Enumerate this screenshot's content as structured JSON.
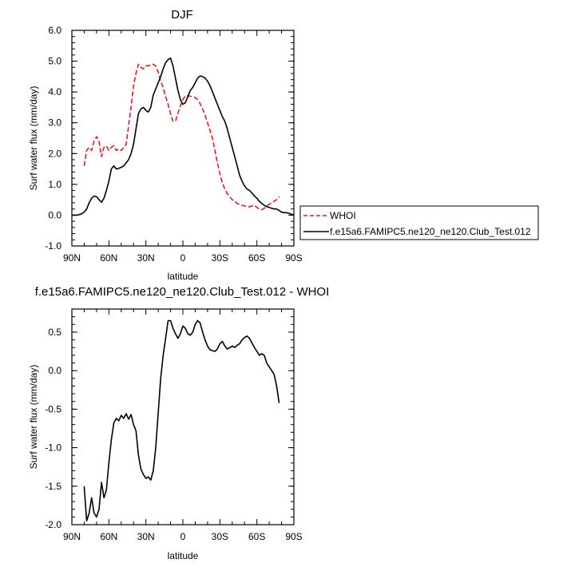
{
  "chart_data": [
    {
      "type": "line",
      "title": "DJF",
      "xlabel": "latitude",
      "ylabel": "Surf water flux (mm/day)",
      "xlim": [
        90,
        -90
      ],
      "ylim": [
        -1.0,
        6.0
      ],
      "x_ticks": [
        90,
        60,
        30,
        0,
        -30,
        -60,
        -90
      ],
      "x_tick_labels": [
        "90N",
        "60N",
        "30N",
        "0",
        "30S",
        "60S",
        "90S"
      ],
      "y_ticks": [
        -1.0,
        0.0,
        1.0,
        2.0,
        3.0,
        4.0,
        5.0,
        6.0
      ],
      "y_tick_labels": [
        "-1.0",
        "0.0",
        "1.0",
        "2.0",
        "3.0",
        "4.0",
        "5.0",
        "6.0"
      ],
      "grid": false,
      "legend": "outside-right",
      "series": [
        {
          "name": "WHOI",
          "color": "#e8191c",
          "dash": "dashed",
          "x": [
            80,
            78,
            76,
            74,
            72,
            70,
            68,
            66,
            64,
            62,
            60,
            58,
            56,
            54,
            52,
            50,
            48,
            46,
            44,
            42,
            40,
            38,
            36,
            34,
            32,
            30,
            28,
            26,
            24,
            22,
            20,
            18,
            16,
            14,
            12,
            10,
            8,
            6,
            4,
            2,
            0,
            -2,
            -4,
            -6,
            -8,
            -10,
            -12,
            -14,
            -16,
            -18,
            -20,
            -22,
            -24,
            -26,
            -28,
            -30,
            -32,
            -34,
            -36,
            -38,
            -40,
            -42,
            -44,
            -46,
            -48,
            -50,
            -52,
            -54,
            -56,
            -58,
            -60,
            -62,
            -64,
            -66,
            -68,
            -70,
            -72,
            -74,
            -76,
            -78
          ],
          "y": [
            1.6,
            2.1,
            2.2,
            2.1,
            2.4,
            2.55,
            2.4,
            1.9,
            2.2,
            2.25,
            2.1,
            2.2,
            2.25,
            2.1,
            2.15,
            2.1,
            2.2,
            2.3,
            2.9,
            3.5,
            4.2,
            4.6,
            4.9,
            4.8,
            4.75,
            4.85,
            4.85,
            4.88,
            4.9,
            4.85,
            4.65,
            4.35,
            4.15,
            3.85,
            3.6,
            3.3,
            3.05,
            3.05,
            3.3,
            3.55,
            3.75,
            3.88,
            3.88,
            3.86,
            3.85,
            3.82,
            3.75,
            3.62,
            3.45,
            3.25,
            3.0,
            2.75,
            2.5,
            2.1,
            1.7,
            1.35,
            1.05,
            0.85,
            0.7,
            0.6,
            0.5,
            0.45,
            0.38,
            0.35,
            0.32,
            0.3,
            0.28,
            0.27,
            0.3,
            0.32,
            0.25,
            0.2,
            0.18,
            0.22,
            0.3,
            0.35,
            0.4,
            0.45,
            0.5,
            0.6
          ]
        },
        {
          "name": "f.e15a6.FAMIPC5.ne120_ne120.Club_Test.012",
          "color": "#000000",
          "dash": "solid",
          "x": [
            90,
            88,
            86,
            84,
            82,
            80,
            78,
            76,
            74,
            72,
            70,
            68,
            66,
            64,
            62,
            60,
            58,
            56,
            54,
            52,
            50,
            48,
            46,
            44,
            42,
            40,
            38,
            36,
            34,
            32,
            30,
            28,
            26,
            24,
            22,
            20,
            18,
            16,
            14,
            12,
            10,
            8,
            6,
            4,
            2,
            0,
            -2,
            -4,
            -6,
            -8,
            -10,
            -12,
            -14,
            -16,
            -18,
            -20,
            -22,
            -24,
            -26,
            -28,
            -30,
            -32,
            -34,
            -36,
            -38,
            -40,
            -42,
            -44,
            -46,
            -48,
            -50,
            -52,
            -54,
            -56,
            -58,
            -60,
            -62,
            -64,
            -66,
            -68,
            -70,
            -72,
            -74,
            -76,
            -78,
            -80,
            -82,
            -84,
            -86,
            -88,
            -90
          ],
          "y": [
            0.0,
            0.0,
            0.0,
            0.02,
            0.05,
            0.1,
            0.2,
            0.4,
            0.55,
            0.62,
            0.6,
            0.5,
            0.42,
            0.55,
            0.8,
            1.1,
            1.5,
            1.6,
            1.5,
            1.52,
            1.55,
            1.6,
            1.7,
            1.8,
            2.0,
            2.3,
            2.8,
            3.3,
            3.45,
            3.5,
            3.4,
            3.35,
            3.5,
            3.9,
            4.1,
            4.3,
            4.5,
            4.75,
            4.95,
            5.05,
            5.1,
            4.85,
            4.45,
            4.05,
            3.75,
            3.6,
            3.65,
            3.85,
            4.05,
            4.15,
            4.3,
            4.45,
            4.52,
            4.5,
            4.45,
            4.35,
            4.2,
            4.0,
            3.8,
            3.6,
            3.4,
            3.2,
            3.05,
            2.8,
            2.5,
            2.2,
            1.9,
            1.6,
            1.3,
            1.1,
            0.95,
            0.85,
            0.8,
            0.72,
            0.62,
            0.55,
            0.45,
            0.38,
            0.32,
            0.28,
            0.25,
            0.22,
            0.2,
            0.2,
            0.15,
            0.1,
            0.08,
            0.08,
            0.06,
            0.03,
            0.0
          ]
        }
      ]
    },
    {
      "type": "line",
      "title": "f.e15a6.FAMIPC5.ne120_ne120.Club_Test.012 - WHOI",
      "xlabel": "latitude",
      "ylabel": "Surf water flux (mm/day)",
      "xlim": [
        90,
        -90
      ],
      "ylim": [
        -2.0,
        0.8
      ],
      "x_ticks": [
        90,
        60,
        30,
        0,
        -30,
        -60,
        -90
      ],
      "x_tick_labels": [
        "90N",
        "60N",
        "30N",
        "0",
        "30S",
        "60S",
        "90S"
      ],
      "y_ticks": [
        -2.0,
        -1.5,
        -1.0,
        -0.5,
        0.0,
        0.5
      ],
      "y_tick_labels": [
        "-2.0",
        "-1.5",
        "-1.0",
        "-0.5",
        "0.0",
        "0.5"
      ],
      "grid": false,
      "series": [
        {
          "color": "#000000",
          "dash": "solid",
          "x": [
            80,
            78,
            76,
            74,
            72,
            70,
            68,
            66,
            64,
            62,
            60,
            58,
            56,
            54,
            52,
            50,
            48,
            46,
            44,
            42,
            40,
            38,
            36,
            34,
            32,
            30,
            28,
            26,
            24,
            22,
            20,
            18,
            16,
            14,
            12,
            10,
            8,
            6,
            4,
            2,
            0,
            -2,
            -4,
            -6,
            -8,
            -10,
            -12,
            -14,
            -16,
            -18,
            -20,
            -22,
            -24,
            -26,
            -28,
            -30,
            -32,
            -34,
            -36,
            -38,
            -40,
            -42,
            -44,
            -46,
            -48,
            -50,
            -52,
            -54,
            -56,
            -58,
            -60,
            -62,
            -64,
            -66,
            -68,
            -70,
            -72,
            -74,
            -76,
            -78
          ],
          "y": [
            -1.5,
            -1.95,
            -1.85,
            -1.65,
            -1.85,
            -1.9,
            -1.8,
            -1.45,
            -1.65,
            -1.55,
            -1.2,
            -0.9,
            -0.68,
            -0.62,
            -0.65,
            -0.58,
            -0.62,
            -0.56,
            -0.63,
            -0.57,
            -0.7,
            -0.78,
            -1.1,
            -1.28,
            -1.35,
            -1.4,
            -1.38,
            -1.42,
            -1.3,
            -1.0,
            -0.55,
            -0.1,
            0.2,
            0.42,
            0.65,
            0.65,
            0.55,
            0.48,
            0.42,
            0.48,
            0.58,
            0.55,
            0.48,
            0.46,
            0.5,
            0.6,
            0.65,
            0.62,
            0.5,
            0.4,
            0.32,
            0.27,
            0.26,
            0.25,
            0.28,
            0.35,
            0.38,
            0.32,
            0.28,
            0.3,
            0.32,
            0.3,
            0.33,
            0.35,
            0.4,
            0.43,
            0.45,
            0.42,
            0.36,
            0.3,
            0.25,
            0.2,
            0.22,
            0.2,
            0.1,
            0.05,
            0.0,
            -0.05,
            -0.2,
            -0.42
          ]
        }
      ]
    }
  ]
}
